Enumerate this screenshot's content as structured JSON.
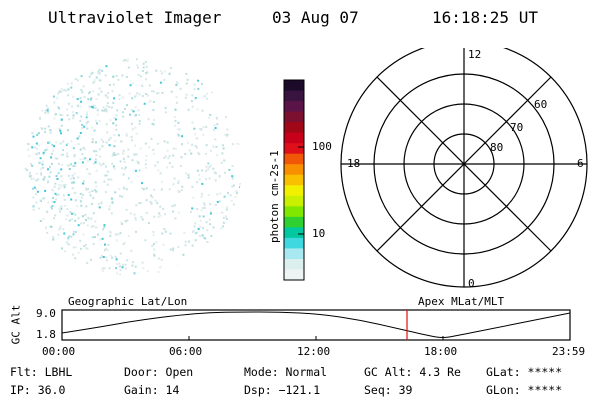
{
  "header": {
    "title": "Ultraviolet Imager",
    "date": "03 Aug 07",
    "time": "16:18:25 UT"
  },
  "colorbar": {
    "unit_label": "photon cm-2s-1",
    "ticks": [
      "100",
      "10"
    ],
    "colors": [
      "#1b0a2a",
      "#3a1440",
      "#5a1448",
      "#7b1030",
      "#a00818",
      "#c8001a",
      "#e0101a",
      "#f05808",
      "#f89000",
      "#f8c000",
      "#f0f000",
      "#c8f000",
      "#80e800",
      "#30d030",
      "#00c8a0",
      "#40d8e0",
      "#a8e8f0",
      "#dcefef",
      "#eef4f4"
    ]
  },
  "polar": {
    "mlt_labels": [
      "12",
      "18",
      "6",
      "0"
    ],
    "lat_labels": [
      "60",
      "70",
      "80"
    ]
  },
  "timeline": {
    "axis_label": "GC Alt",
    "y_max": "9.0",
    "y_min": "1.8",
    "left_title": "Geographic Lat/Lon",
    "right_title": "Apex MLat/MLT",
    "ticks": [
      "00:00",
      "06:00",
      "12:00",
      "18:00",
      "23:59"
    ],
    "marker_color": "#e01010"
  },
  "status": {
    "flt": "Flt: LBHL",
    "ip": "IP: 36.0",
    "door": "Door: Open",
    "gain": "Gain: 14",
    "mode": "Mode: Normal",
    "dsp": "Dsp: −121.1",
    "gc_alt": "GC Alt: 4.3 Re",
    "seq": "Seq: 39",
    "glat": "GLat: *****",
    "glon": "GLon: *****"
  }
}
